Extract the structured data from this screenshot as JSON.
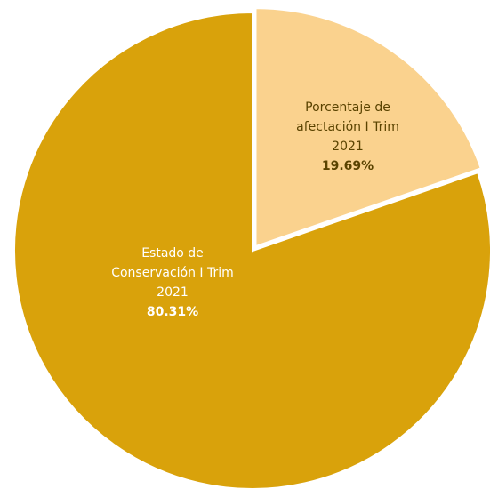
{
  "chart_data": {
    "type": "pie",
    "title": "",
    "categories": [
      "Porcentaje de afectación I Trim 2021",
      "Estado de Conservación I Trim 2021"
    ],
    "values": [
      19.69,
      80.31
    ],
    "slices": [
      {
        "label_lines": [
          "Porcentaje de",
          "afectación I Trim",
          "2021"
        ],
        "percent_label": "19.69%",
        "value": 19.69,
        "color": "#fad28e",
        "exploded": true
      },
      {
        "label_lines": [
          "Estado de",
          "Conservación I Trim",
          "2021"
        ],
        "percent_label": "80.31%",
        "value": 80.31,
        "color": "#d9a20b",
        "exploded": false
      }
    ],
    "start_angle_deg": 0,
    "direction": "clockwise",
    "legend": "none"
  }
}
